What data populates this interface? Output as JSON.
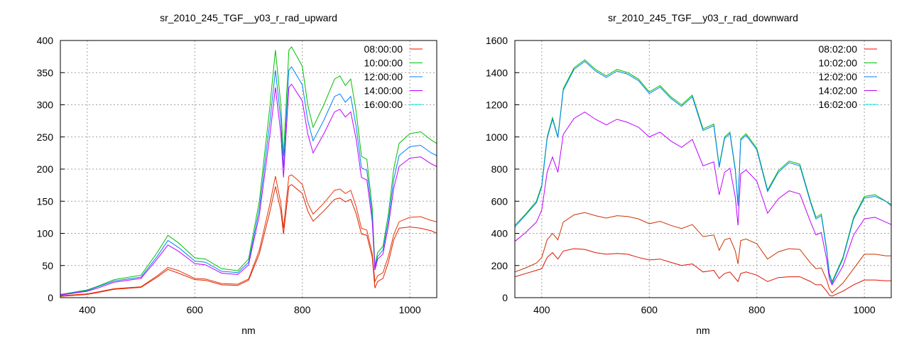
{
  "chart_data": [
    {
      "type": "line",
      "title": "sr_2010_245_TGF__y03_r_rad_upward",
      "xlabel": "nm",
      "ylabel": "",
      "xlim": [
        350,
        1050
      ],
      "ylim": [
        0,
        400
      ],
      "xticks": [
        400,
        600,
        800,
        1000
      ],
      "yticks": [
        0,
        50,
        100,
        150,
        200,
        250,
        300,
        350,
        400
      ],
      "grid": true,
      "legend": "top-right",
      "x": [
        350,
        400,
        420,
        450,
        500,
        530,
        550,
        570,
        600,
        620,
        650,
        680,
        700,
        720,
        740,
        750,
        760,
        765,
        775,
        780,
        790,
        800,
        810,
        820,
        840,
        860,
        870,
        880,
        890,
        900,
        910,
        920,
        930,
        935,
        940,
        950,
        960,
        970,
        980,
        1000,
        1020,
        1040,
        1050
      ],
      "series": [
        {
          "name": "08:00:00",
          "color": "#ff0000",
          "line_color": "#e8340a",
          "values": [
            3,
            6,
            9,
            14,
            17,
            34,
            47,
            42,
            30,
            29,
            22,
            21,
            29,
            74,
            147,
            189,
            147,
            108,
            189,
            191,
            184,
            176,
            147,
            130,
            147,
            167,
            169,
            162,
            167,
            142,
            108,
            105,
            69,
            25,
            34,
            39,
            64,
            98,
            118,
            125,
            126,
            120,
            118
          ]
        },
        {
          "name": "10:00:00",
          "color": "#00c000",
          "line_color": "#00c000",
          "values": [
            5,
            12,
            18,
            28,
            35,
            70,
            97,
            85,
            62,
            60,
            45,
            42,
            60,
            150,
            300,
            385,
            300,
            220,
            385,
            390,
            375,
            360,
            300,
            265,
            300,
            340,
            345,
            330,
            340,
            290,
            220,
            215,
            140,
            50,
            70,
            80,
            130,
            200,
            240,
            255,
            258,
            245,
            240
          ]
        },
        {
          "name": "12:00:00",
          "color": "#0080ff",
          "line_color": "#0080ff",
          "values": [
            5,
            11,
            17,
            26,
            32,
            64,
            89,
            78,
            57,
            55,
            41,
            39,
            55,
            138,
            276,
            354,
            276,
            202,
            354,
            359,
            345,
            331,
            276,
            244,
            276,
            313,
            317,
            304,
            313,
            267,
            202,
            198,
            129,
            46,
            64,
            74,
            120,
            184,
            221,
            235,
            237,
            225,
            221
          ]
        },
        {
          "name": "14:00:00",
          "color": "#c000ff",
          "line_color": "#c000ff",
          "values": [
            4,
            10,
            15,
            24,
            30,
            60,
            82,
            72,
            53,
            51,
            38,
            36,
            51,
            128,
            255,
            327,
            255,
            187,
            327,
            332,
            319,
            306,
            255,
            225,
            255,
            289,
            293,
            281,
            289,
            247,
            187,
            183,
            119,
            43,
            60,
            68,
            111,
            170,
            204,
            217,
            219,
            208,
            204
          ]
        },
        {
          "name": "16:00:00",
          "color": "#00eeee",
          "line_color": "#dd2200",
          "values": [
            2,
            5,
            8,
            13,
            16,
            32,
            44,
            38,
            28,
            27,
            20,
            19,
            27,
            68,
            135,
            173,
            135,
            99,
            173,
            176,
            169,
            162,
            135,
            119,
            135,
            153,
            155,
            149,
            153,
            131,
            99,
            97,
            63,
            15,
            25,
            30,
            55,
            90,
            108,
            110,
            108,
            104,
            100
          ]
        }
      ]
    },
    {
      "type": "line",
      "title": "sr_2010_245_TGF__y03_r_rad_downward",
      "xlabel": "nm",
      "ylabel": "",
      "xlim": [
        350,
        1050
      ],
      "ylim": [
        0,
        1600
      ],
      "xticks": [
        400,
        600,
        800,
        1000
      ],
      "yticks": [
        0,
        200,
        400,
        600,
        800,
        1000,
        1200,
        1400,
        1600
      ],
      "grid": true,
      "legend": "top-right",
      "x": [
        350,
        370,
        390,
        400,
        410,
        420,
        430,
        440,
        460,
        480,
        500,
        520,
        540,
        560,
        580,
        600,
        620,
        640,
        660,
        680,
        700,
        720,
        730,
        740,
        750,
        760,
        765,
        770,
        780,
        800,
        820,
        840,
        860,
        880,
        900,
        910,
        920,
        930,
        935,
        940,
        960,
        980,
        1000,
        1020,
        1040,
        1050
      ],
      "series": [
        {
          "name": "08:02:00",
          "color": "#ff0000",
          "line_color": "#cc3300",
          "values": [
            160,
            185,
            215,
            250,
            360,
            400,
            360,
            470,
            515,
            530,
            510,
            495,
            510,
            505,
            490,
            460,
            475,
            450,
            430,
            455,
            380,
            390,
            295,
            360,
            370,
            290,
            210,
            355,
            365,
            335,
            240,
            285,
            305,
            300,
            215,
            180,
            185,
            110,
            55,
            30,
            90,
            180,
            270,
            270,
            260,
            260
          ]
        },
        {
          "name": "10:02:00",
          "color": "#00c000",
          "line_color": "#00c000",
          "values": [
            450,
            520,
            600,
            700,
            1000,
            1120,
            1000,
            1300,
            1430,
            1480,
            1420,
            1380,
            1420,
            1400,
            1360,
            1280,
            1320,
            1250,
            1200,
            1260,
            1050,
            1080,
            820,
            1000,
            1030,
            800,
            580,
            990,
            1020,
            930,
            670,
            790,
            850,
            830,
            600,
            500,
            520,
            300,
            150,
            100,
            250,
            500,
            630,
            640,
            600,
            580
          ]
        },
        {
          "name": "12:02:00",
          "color": "#0080ff",
          "line_color": "#0080ff",
          "values": [
            440,
            515,
            590,
            690,
            990,
            1110,
            995,
            1290,
            1420,
            1470,
            1410,
            1370,
            1410,
            1390,
            1350,
            1270,
            1310,
            1240,
            1190,
            1250,
            1040,
            1070,
            810,
            990,
            1020,
            790,
            570,
            980,
            1010,
            920,
            660,
            780,
            840,
            820,
            590,
            490,
            510,
            290,
            140,
            90,
            240,
            490,
            620,
            630,
            600,
            570
          ]
        },
        {
          "name": "14:02:00",
          "color": "#c000ff",
          "line_color": "#c000ff",
          "values": [
            350,
            405,
            470,
            545,
            780,
            875,
            780,
            1015,
            1115,
            1155,
            1110,
            1075,
            1110,
            1090,
            1060,
            1000,
            1030,
            975,
            935,
            985,
            820,
            845,
            640,
            780,
            805,
            625,
            450,
            770,
            795,
            725,
            525,
            615,
            665,
            645,
            470,
            390,
            405,
            235,
            115,
            80,
            195,
            390,
            490,
            500,
            470,
            455
          ]
        },
        {
          "name": "16:02:00",
          "color": "#00eeee",
          "line_color": "#dd1100",
          "values": [
            130,
            150,
            170,
            180,
            250,
            280,
            240,
            290,
            305,
            300,
            280,
            270,
            275,
            270,
            250,
            235,
            240,
            220,
            200,
            210,
            160,
            170,
            120,
            150,
            160,
            120,
            100,
            150,
            160,
            140,
            100,
            125,
            130,
            130,
            100,
            80,
            80,
            40,
            15,
            10,
            40,
            80,
            110,
            110,
            105,
            105
          ]
        }
      ]
    }
  ]
}
